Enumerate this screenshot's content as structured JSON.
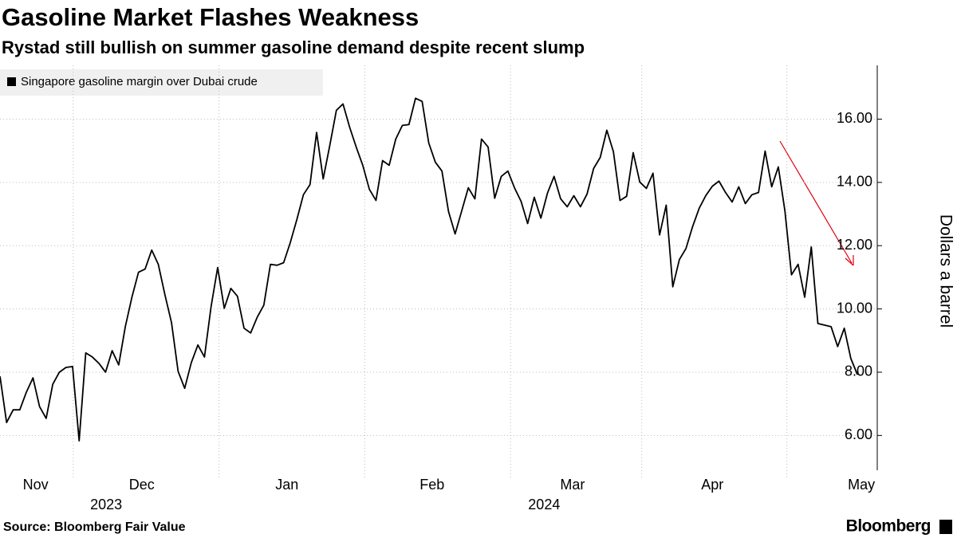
{
  "chart_data": {
    "type": "line",
    "title": "Gasoline Market Flashes Weakness",
    "subtitle": "Rystad still bullish on summer gasoline demand despite recent slump",
    "y_axis_label": "Dollars a barrel",
    "source": "Source: Bloomberg Fair Value",
    "brand": "Bloomberg",
    "series": [
      {
        "name": "Singapore gasoline margin over Dubai crude",
        "color": "#000000",
        "values": [
          7.87,
          6.41,
          6.81,
          6.81,
          7.37,
          7.82,
          6.91,
          6.54,
          7.62,
          8.0,
          8.15,
          8.18,
          5.83,
          8.61,
          8.48,
          8.28,
          8.0,
          8.68,
          8.23,
          9.44,
          10.37,
          11.16,
          11.26,
          11.86,
          11.41,
          10.45,
          9.57,
          8.03,
          7.49,
          8.3,
          8.86,
          8.48,
          10.07,
          11.31,
          10.02,
          10.65,
          10.4,
          9.39,
          9.24,
          9.74,
          10.12,
          11.41,
          11.38,
          11.46,
          12.09,
          12.82,
          13.61,
          13.93,
          15.58,
          14.11,
          15.17,
          16.28,
          16.48,
          15.75,
          15.12,
          14.54,
          13.78,
          13.43,
          14.69,
          14.54,
          15.37,
          15.8,
          15.83,
          16.66,
          16.56,
          15.25,
          14.64,
          14.36,
          13.08,
          12.37,
          13.1,
          13.83,
          13.48,
          15.37,
          15.12,
          13.5,
          14.19,
          14.36,
          13.83,
          13.4,
          12.7,
          13.53,
          12.87,
          13.66,
          14.19,
          13.48,
          13.23,
          13.58,
          13.23,
          13.63,
          14.44,
          14.79,
          15.65,
          14.97,
          13.43,
          13.56,
          14.94,
          14.01,
          13.81,
          14.29,
          12.34,
          13.28,
          10.7,
          11.56,
          11.91,
          12.6,
          13.18,
          13.58,
          13.88,
          14.04,
          13.68,
          13.38,
          13.86,
          13.33,
          13.61,
          13.68,
          14.99,
          13.86,
          14.49,
          13.1,
          11.08,
          11.41,
          10.37,
          11.96,
          9.54,
          9.49,
          9.44,
          8.81,
          9.39,
          8.43,
          7.92
        ]
      }
    ],
    "xlim": [
      0,
      133
    ],
    "xticks": [
      {
        "value": 5.4,
        "label": "Nov"
      },
      {
        "value": 21.5,
        "label": "Dec"
      },
      {
        "value": 43.5,
        "label": "Jan"
      },
      {
        "value": 65.5,
        "label": "Feb"
      },
      {
        "value": 86.8,
        "label": "Mar"
      },
      {
        "value": 108,
        "label": "Apr"
      },
      {
        "value": 130.6,
        "label": "May"
      }
    ],
    "x_year_labels": [
      {
        "value": 16.1,
        "label": "2023"
      },
      {
        "value": 82.5,
        "label": "2024"
      }
    ],
    "x_month_lines": [
      11.1,
      33.2,
      55.3,
      77.4,
      97.3,
      119.3
    ],
    "ylim": [
      4.9,
      17.7
    ],
    "yticks": [
      {
        "value": 6,
        "label": "6.00"
      },
      {
        "value": 8,
        "label": "8.00"
      },
      {
        "value": 10,
        "label": "10.00"
      },
      {
        "value": 12,
        "label": "12.00"
      },
      {
        "value": 14,
        "label": "14.00"
      },
      {
        "value": 16,
        "label": "16.00"
      }
    ],
    "grid": true
  }
}
